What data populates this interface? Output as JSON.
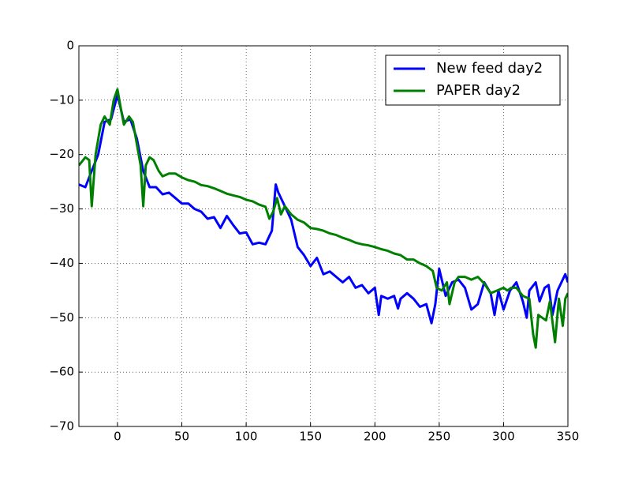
{
  "chart_data": {
    "type": "line",
    "xlim": [
      -30,
      350
    ],
    "ylim": [
      -70,
      0
    ],
    "xticks": [
      0,
      50,
      100,
      150,
      200,
      250,
      300,
      350
    ],
    "yticks": [
      {
        "value": -70,
        "label": "−70"
      },
      {
        "value": -60,
        "label": "−60"
      },
      {
        "value": -50,
        "label": "−50"
      },
      {
        "value": -40,
        "label": "−40"
      },
      {
        "value": -30,
        "label": "−30"
      },
      {
        "value": -20,
        "label": "−20"
      },
      {
        "value": -10,
        "label": "−10"
      },
      0
    ],
    "grid": true,
    "legend": "upper-right",
    "series": [
      {
        "name": "New feed day2",
        "color": "#0000ff",
        "x": [
          -30,
          -25,
          -20,
          -15,
          -10,
          -5,
          0,
          5,
          10,
          15,
          20,
          25,
          30,
          35,
          40,
          45,
          50,
          55,
          60,
          65,
          70,
          75,
          80,
          85,
          90,
          95,
          100,
          105,
          110,
          115,
          120,
          123,
          125,
          130,
          135,
          140,
          145,
          150,
          155,
          160,
          165,
          170,
          175,
          180,
          185,
          190,
          195,
          200,
          203,
          205,
          210,
          215,
          218,
          220,
          225,
          230,
          235,
          240,
          244,
          247,
          250,
          255,
          260,
          265,
          270,
          275,
          280,
          285,
          290,
          293,
          296,
          300,
          305,
          310,
          315,
          318,
          320,
          325,
          328,
          332,
          335,
          338,
          342,
          345,
          348,
          350
        ],
        "values": [
          -25.5,
          -26,
          -23,
          -20,
          -14,
          -13.5,
          -9,
          -14,
          -13.5,
          -17,
          -23,
          -26,
          -26,
          -27.3,
          -27,
          -28,
          -29,
          -29,
          -30,
          -30.5,
          -31.8,
          -31.5,
          -33.5,
          -31.3,
          -33,
          -34.5,
          -34.3,
          -36.5,
          -36.2,
          -36.5,
          -34,
          -25.5,
          -27,
          -29.5,
          -32,
          -37,
          -38.5,
          -40.5,
          -39,
          -42,
          -41.5,
          -42.5,
          -43.5,
          -42.5,
          -44.5,
          -44,
          -45.5,
          -44.5,
          -49.5,
          -46,
          -46.5,
          -46,
          -48.3,
          -46.5,
          -45.5,
          -46.5,
          -48,
          -47.5,
          -51,
          -47.5,
          -41,
          -46,
          -43.5,
          -43,
          -44.5,
          -48.5,
          -47.5,
          -43.5,
          -45.5,
          -49.5,
          -45,
          -48.5,
          -45,
          -43.5,
          -47,
          -50,
          -45,
          -43.5,
          -47,
          -44.5,
          -44,
          -49.5,
          -45,
          -43.5,
          -42,
          -43.5
        ]
      },
      {
        "name": "PAPER day2",
        "color": "#008000",
        "x": [
          -30,
          -25,
          -22,
          -20,
          -17,
          -13,
          -10,
          -6,
          -3,
          0,
          3,
          5,
          9,
          12,
          15,
          18,
          20,
          22,
          25,
          28,
          32,
          35,
          40,
          45,
          50,
          55,
          60,
          65,
          70,
          75,
          80,
          85,
          90,
          95,
          100,
          105,
          110,
          115,
          118,
          121,
          124,
          127,
          130,
          135,
          140,
          145,
          150,
          155,
          160,
          165,
          170,
          175,
          180,
          185,
          190,
          195,
          200,
          205,
          210,
          215,
          220,
          225,
          230,
          235,
          240,
          245,
          248,
          252,
          256,
          258,
          262,
          265,
          270,
          275,
          280,
          285,
          290,
          295,
          300,
          303,
          306,
          310,
          315,
          320,
          323,
          325,
          327,
          330,
          333,
          336,
          340,
          343,
          346,
          348,
          350
        ],
        "values": [
          -22,
          -20.5,
          -21,
          -29.5,
          -20,
          -14.5,
          -13,
          -14.5,
          -10,
          -8,
          -12,
          -14.5,
          -13,
          -14,
          -18,
          -22,
          -29.5,
          -22,
          -20.5,
          -21,
          -23,
          -24,
          -23.5,
          -23.5,
          -24.2,
          -24.7,
          -25,
          -25.6,
          -25.8,
          -26.2,
          -26.7,
          -27.2,
          -27.5,
          -27.8,
          -28.3,
          -28.6,
          -29.2,
          -29.6,
          -31.8,
          -30.5,
          -28,
          -31,
          -29.5,
          -31,
          -32,
          -32.5,
          -33.5,
          -33.7,
          -34,
          -34.5,
          -34.8,
          -35.3,
          -35.7,
          -36.2,
          -36.5,
          -36.7,
          -37,
          -37.4,
          -37.7,
          -38.2,
          -38.5,
          -39.3,
          -39.3,
          -40,
          -40.5,
          -41.4,
          -44.5,
          -45,
          -43.5,
          -47.5,
          -43.5,
          -42.5,
          -42.5,
          -43,
          -42.5,
          -43.7,
          -45.5,
          -45,
          -44.5,
          -45,
          -44.5,
          -44.5,
          -46,
          -46.5,
          -53,
          -55.5,
          -49.5,
          -50,
          -50.5,
          -47,
          -54.5,
          -46.5,
          -51.5,
          -46.5,
          -45.5
        ]
      }
    ]
  }
}
